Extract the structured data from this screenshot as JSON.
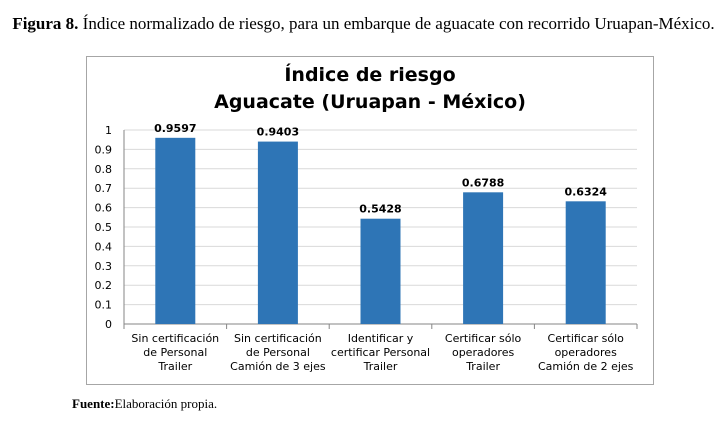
{
  "caption": {
    "label": "Figura 8.",
    "text": "Índice normalizado de riesgo, para un embarque de aguacate con recorrido Uruapan-México."
  },
  "source": {
    "label": "Fuente:",
    "text": "Elaboración propia."
  },
  "chart_data": {
    "type": "bar",
    "title": "Índice de riesgo",
    "subtitle": "Aguacate (Uruapan - México)",
    "categories": [
      [
        "Sin certificación",
        "de Personal",
        "Trailer"
      ],
      [
        "Sin certificación",
        "de Personal",
        "Camión de 3 ejes"
      ],
      [
        "Identificar y",
        "certificar Personal",
        "Trailer"
      ],
      [
        "Certificar sólo",
        "operadores",
        "Trailer"
      ],
      [
        "Certificar sólo",
        "operadores",
        "Camión de 2 ejes"
      ]
    ],
    "values": [
      0.9597,
      0.9403,
      0.5428,
      0.6788,
      0.6324
    ],
    "data_labels": [
      "0.9597",
      "0.9403",
      "0.5428",
      "0.6788",
      "0.6324"
    ],
    "ylim": [
      0,
      1
    ],
    "yticks": [
      "0",
      "0.1",
      "0.2",
      "0.3",
      "0.4",
      "0.5",
      "0.6",
      "0.7",
      "0.8",
      "0.9",
      "1"
    ],
    "grid": true,
    "legend": "none",
    "bar_color": "#2e75b6",
    "grid_color": "#d9d9d9"
  }
}
